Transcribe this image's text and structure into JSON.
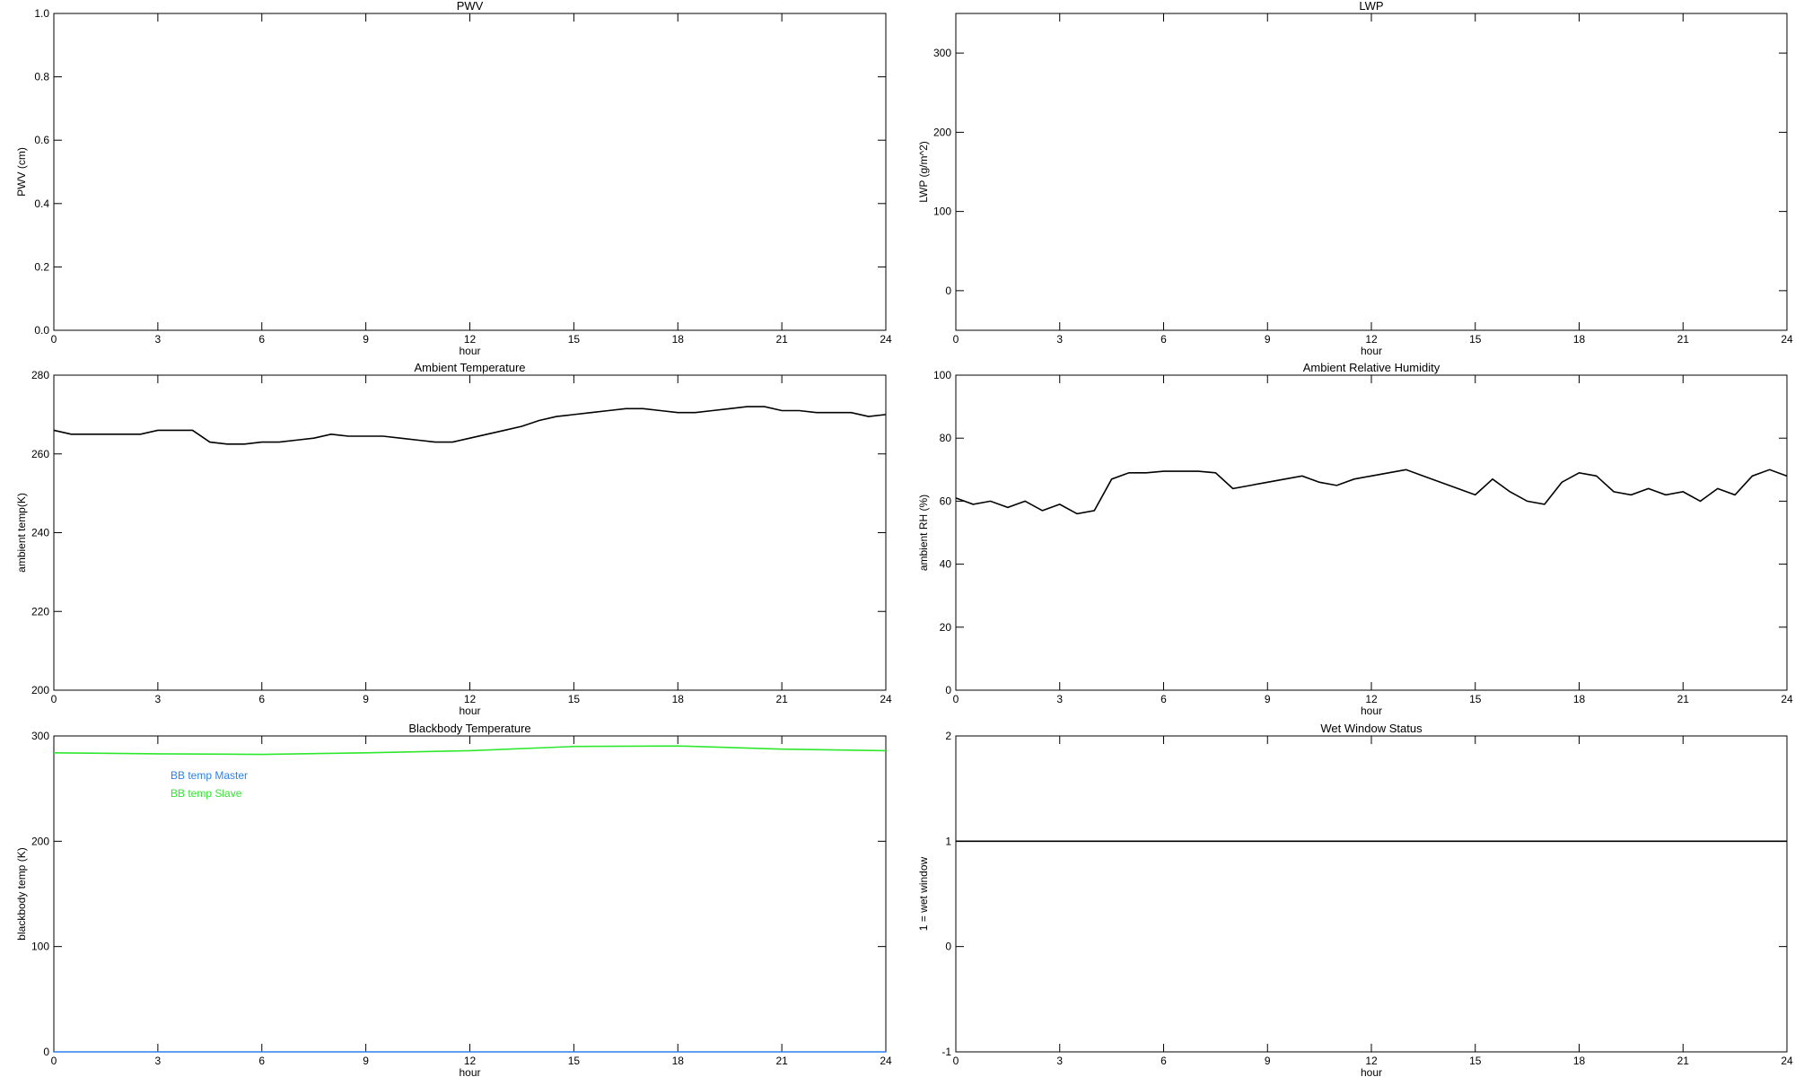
{
  "chart_data": [
    {
      "type": "line",
      "title": "PWV",
      "xlabel": "hour",
      "ylabel": "PWV (cm)",
      "xlim": [
        0,
        24
      ],
      "xticks": [
        0,
        3,
        6,
        9,
        12,
        15,
        18,
        21,
        24
      ],
      "ylim": [
        0,
        1
      ],
      "yticks": [
        {
          "value": 0,
          "label": "0.0"
        },
        0.2,
        0.4,
        0.6,
        0.8,
        {
          "value": 1,
          "label": "1.0"
        }
      ]
    },
    {
      "type": "line",
      "title": "LWP",
      "xlabel": "hour",
      "ylabel": "LWP (g/m^2)",
      "xlim": [
        0,
        24
      ],
      "xticks": [
        0,
        3,
        6,
        9,
        12,
        15,
        18,
        21,
        24
      ],
      "ylim": [
        -50,
        350
      ],
      "yticks": [
        0,
        100,
        200,
        300
      ]
    },
    {
      "type": "line",
      "title": "Ambient Temperature",
      "xlabel": "hour",
      "ylabel": "ambient temp(K)",
      "xlim": [
        0,
        24
      ],
      "xticks": [
        0,
        3,
        6,
        9,
        12,
        15,
        18,
        21,
        24
      ],
      "ylim": [
        200,
        280
      ],
      "yticks": [
        200,
        220,
        240,
        260,
        280
      ],
      "x": [
        0,
        0.5,
        1,
        1.5,
        2,
        2.5,
        3,
        3.5,
        4,
        4.5,
        5,
        5.5,
        6,
        6.5,
        7,
        7.5,
        8,
        8.5,
        9,
        9.5,
        10,
        10.5,
        11,
        11.5,
        12,
        12.5,
        13,
        13.5,
        14,
        14.5,
        15,
        15.5,
        16,
        16.5,
        17,
        17.5,
        18,
        18.5,
        19,
        19.5,
        20,
        20.5,
        21,
        21.5,
        22,
        22.5,
        23,
        23.5,
        24
      ],
      "series": [
        {
          "color": "#000000",
          "values": [
            266,
            265,
            265,
            265,
            265,
            265,
            266,
            266,
            266,
            263,
            262.5,
            262.5,
            263,
            263,
            263.5,
            264,
            265,
            264.5,
            264.5,
            264.5,
            264,
            263.5,
            263,
            263,
            264,
            265,
            266,
            267,
            268.5,
            269.5,
            270,
            270.5,
            271,
            271.5,
            271.5,
            271,
            270.5,
            270.5,
            271,
            271.5,
            272,
            272,
            271,
            271,
            270.5,
            270.5,
            270.5,
            269.5,
            270
          ]
        }
      ]
    },
    {
      "type": "line",
      "title": "Ambient Relative Humidity",
      "xlabel": "hour",
      "ylabel": "ambient RH (%)",
      "xlim": [
        0,
        24
      ],
      "xticks": [
        0,
        3,
        6,
        9,
        12,
        15,
        18,
        21,
        24
      ],
      "ylim": [
        0,
        100
      ],
      "yticks": [
        0,
        20,
        40,
        60,
        80,
        100
      ],
      "x": [
        0,
        0.5,
        1,
        1.5,
        2,
        2.5,
        3,
        3.5,
        4,
        4.5,
        5,
        5.5,
        6,
        6.5,
        7,
        7.5,
        8,
        8.5,
        9,
        9.5,
        10,
        10.5,
        11,
        11.5,
        12,
        12.5,
        13,
        13.5,
        14,
        14.5,
        15,
        15.5,
        16,
        16.5,
        17,
        17.5,
        18,
        18.5,
        19,
        19.5,
        20,
        20.5,
        21,
        21.5,
        22,
        22.5,
        23,
        23.5,
        24
      ],
      "series": [
        {
          "color": "#000000",
          "values": [
            61,
            59,
            60,
            58,
            60,
            57,
            59,
            56,
            57,
            67,
            69,
            69,
            69.5,
            69.5,
            69.5,
            69,
            64,
            65,
            66,
            67,
            68,
            66,
            65,
            67,
            68,
            69,
            70,
            68,
            66,
            64,
            62,
            67,
            63,
            60,
            59,
            66,
            69,
            68,
            63,
            62,
            64,
            62,
            63,
            60,
            64,
            62,
            68,
            70,
            68
          ]
        }
      ]
    },
    {
      "type": "line",
      "title": "Blackbody Temperature",
      "xlabel": "hour",
      "ylabel": "blackbody temp (K)",
      "xlim": [
        0,
        24
      ],
      "xticks": [
        0,
        3,
        6,
        9,
        12,
        15,
        18,
        21,
        24
      ],
      "ylim": [
        0,
        300
      ],
      "yticks": [
        0,
        100,
        200,
        300
      ],
      "legend": "upper left",
      "x": [
        0,
        3,
        6,
        9,
        12,
        15,
        18,
        21,
        24
      ],
      "series": [
        {
          "name": "BB temp Master",
          "color": "#2f7fe8",
          "values": [
            0,
            0,
            0,
            0,
            0,
            0,
            0,
            0,
            0
          ]
        },
        {
          "name": "BB temp Slave",
          "color": "#2ee82e",
          "values": [
            284,
            283,
            282.5,
            284,
            286,
            290,
            290.5,
            287.5,
            286
          ]
        }
      ]
    },
    {
      "type": "line",
      "title": "Wet Window Status",
      "xlabel": "hour",
      "ylabel": "1 = wet window",
      "xlim": [
        0,
        24
      ],
      "xticks": [
        0,
        3,
        6,
        9,
        12,
        15,
        18,
        21,
        24
      ],
      "ylim": [
        -1,
        2
      ],
      "yticks": [
        -1,
        0,
        1,
        2
      ],
      "x": [
        0,
        24
      ],
      "series": [
        {
          "color": "#000000",
          "values": [
            1,
            1
          ]
        }
      ]
    }
  ]
}
